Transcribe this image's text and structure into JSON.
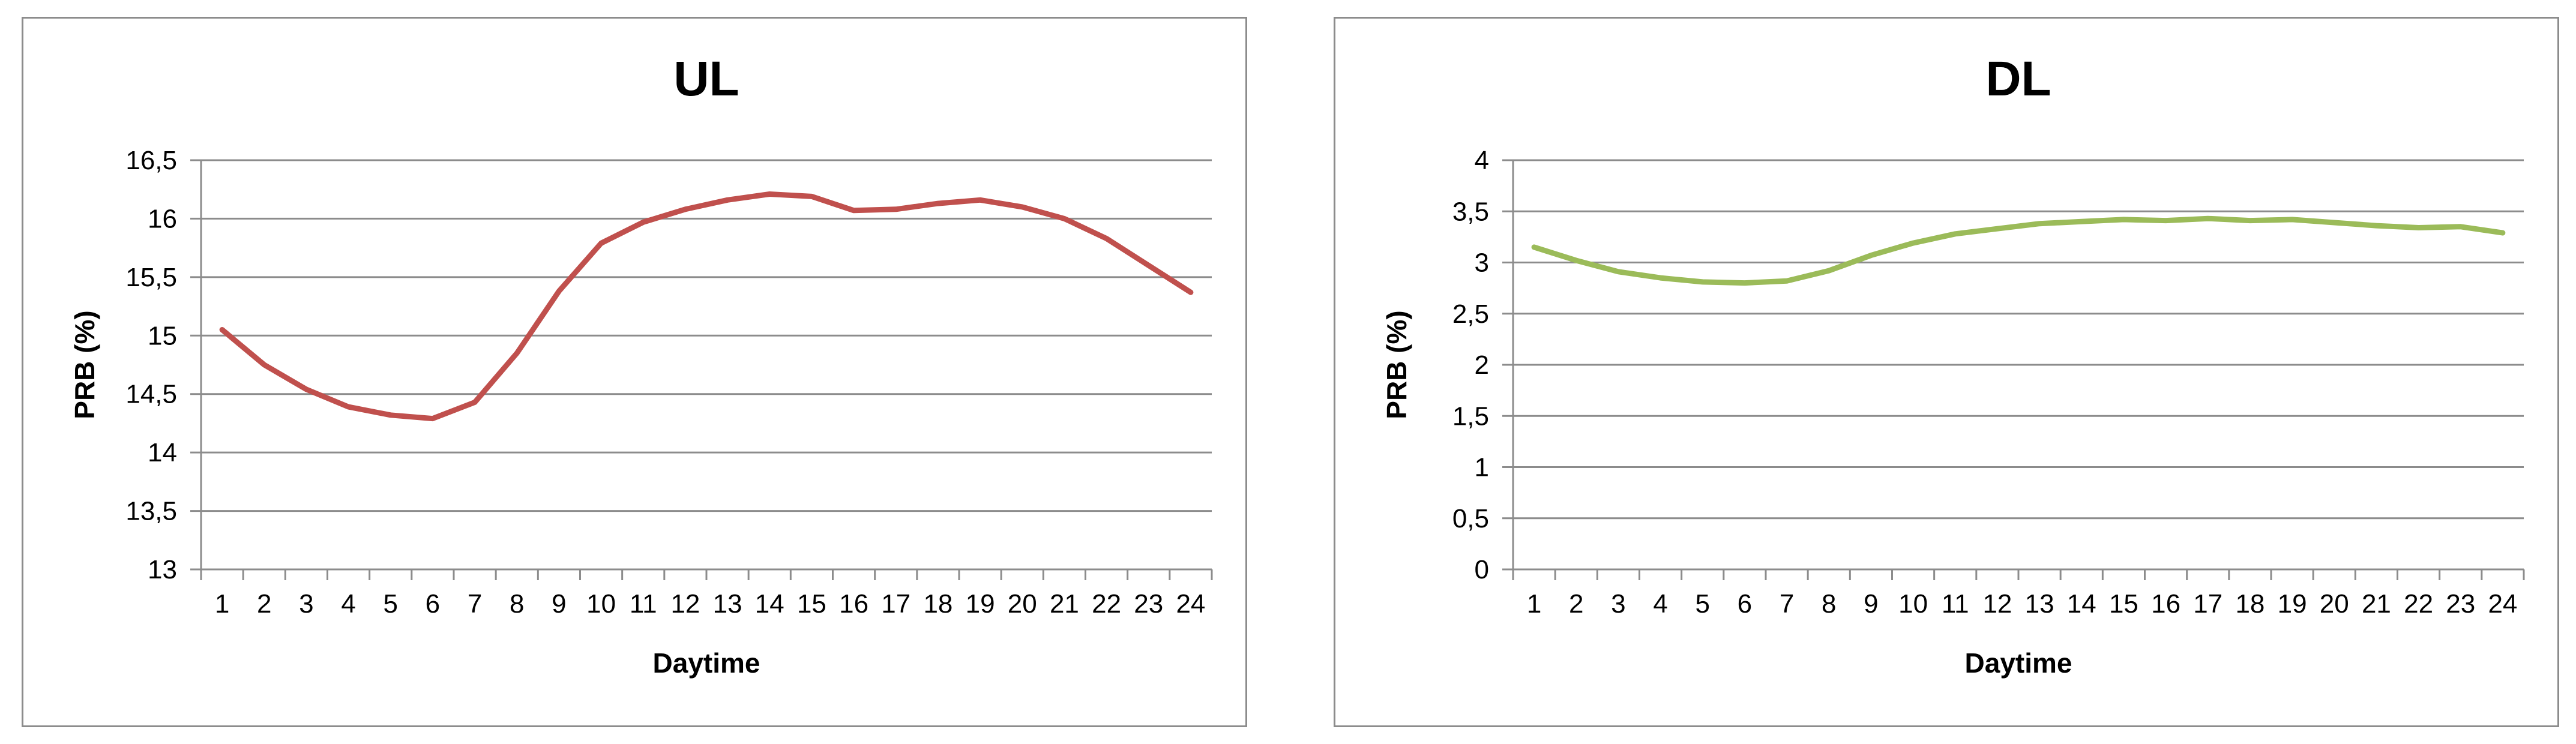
{
  "chart_data": [
    {
      "type": "line",
      "title": "UL",
      "xlabel": "Daytime",
      "ylabel": "PRB (%)",
      "x": [
        1,
        2,
        3,
        4,
        5,
        6,
        7,
        8,
        9,
        10,
        11,
        12,
        13,
        14,
        15,
        16,
        17,
        18,
        19,
        20,
        21,
        22,
        23,
        24
      ],
      "ylim": [
        13,
        16.5
      ],
      "yticks": [
        "13",
        "13,5",
        "14",
        "14,5",
        "15",
        "15,5",
        "16",
        "16,5"
      ],
      "ytick_values": [
        13,
        13.5,
        14,
        14.5,
        15,
        15.5,
        16,
        16.5
      ],
      "grid": true,
      "color": "#c0504d",
      "series": [
        {
          "values": [
            15.05,
            14.75,
            14.54,
            14.39,
            14.32,
            14.29,
            14.43,
            14.85,
            15.38,
            15.79,
            15.97,
            16.08,
            16.16,
            16.21,
            16.19,
            16.07,
            16.08,
            16.13,
            16.16,
            16.1,
            16.0,
            15.83,
            15.6,
            15.37
          ]
        }
      ]
    },
    {
      "type": "line",
      "title": "DL",
      "xlabel": "Daytime",
      "ylabel": "PRB (%)",
      "x": [
        1,
        2,
        3,
        4,
        5,
        6,
        7,
        8,
        9,
        10,
        11,
        12,
        13,
        14,
        15,
        16,
        17,
        18,
        19,
        20,
        21,
        22,
        23,
        24
      ],
      "ylim": [
        0,
        4
      ],
      "yticks": [
        "0",
        "0,5",
        "1",
        "1,5",
        "2",
        "2,5",
        "3",
        "3,5",
        "4"
      ],
      "ytick_values": [
        0,
        0.5,
        1,
        1.5,
        2,
        2.5,
        3,
        3.5,
        4
      ],
      "grid": true,
      "color": "#9bbb59",
      "series": [
        {
          "values": [
            3.15,
            3.02,
            2.91,
            2.85,
            2.81,
            2.8,
            2.82,
            2.92,
            3.07,
            3.19,
            3.28,
            3.33,
            3.38,
            3.4,
            3.42,
            3.41,
            3.43,
            3.41,
            3.42,
            3.39,
            3.36,
            3.34,
            3.35,
            3.29
          ]
        }
      ]
    }
  ]
}
